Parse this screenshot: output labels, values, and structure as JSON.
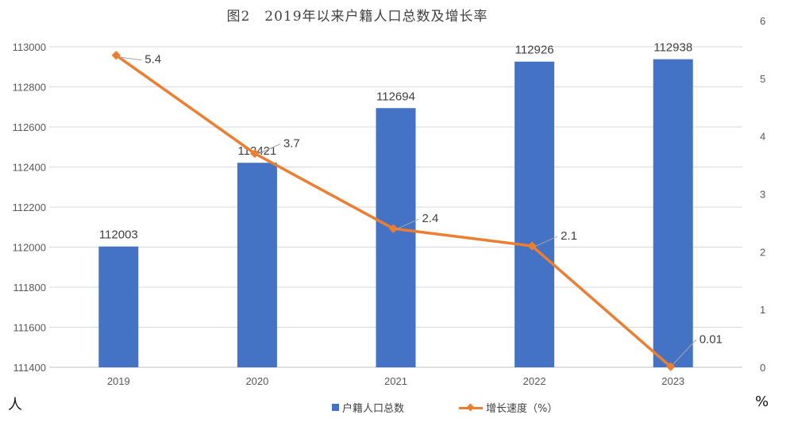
{
  "chart_data": {
    "type": "bar+line",
    "title": "图2　2019年以来户籍人口总数及增长率",
    "categories": [
      "2019",
      "2020",
      "2021",
      "2022",
      "2023"
    ],
    "series": [
      {
        "name": "户籍人口总数",
        "type": "bar",
        "axis": "left",
        "color": "#4472C4",
        "values": [
          112003,
          112421,
          112694,
          112926,
          112938
        ],
        "labels": [
          "112003",
          "112421",
          "112694",
          "112926",
          "112938"
        ]
      },
      {
        "name": "增长速度（%）",
        "type": "line",
        "axis": "right",
        "color": "#ED7D31",
        "marker": "diamond",
        "values": [
          5.4,
          3.7,
          2.4,
          2.1,
          0.01
        ],
        "labels": [
          "5.4",
          "3.7",
          "2.4",
          "2.1",
          "0.01"
        ]
      }
    ],
    "left_axis": {
      "unit": "人",
      "ylim": [
        111400,
        113000
      ],
      "step": 200,
      "ticks": [
        "111400",
        "111600",
        "111800",
        "112000",
        "112200",
        "112400",
        "112600",
        "112800",
        "113000"
      ]
    },
    "right_axis": {
      "unit": "%",
      "ylim": [
        0,
        6
      ],
      "step": 1,
      "ticks": [
        "0",
        "1",
        "2",
        "3",
        "4",
        "5",
        "6"
      ]
    },
    "grid": true,
    "legend_position": "bottom"
  }
}
